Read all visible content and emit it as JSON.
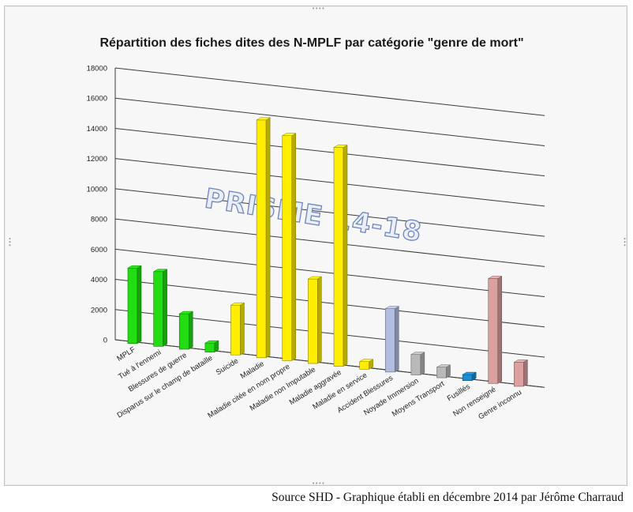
{
  "caption": "Source SHD - Graphique établi en décembre 2014 par Jérôme Charraud",
  "watermark": "PRISME 14-18",
  "chart_data": {
    "type": "bar",
    "title": "Répartition des fiches dites des N-MPLF par catégorie \"genre de mort\"",
    "xlabel": "",
    "ylabel": "",
    "ylim": [
      0,
      18000
    ],
    "yticks": [
      0,
      2000,
      4000,
      6000,
      8000,
      10000,
      12000,
      14000,
      16000,
      18000
    ],
    "grid": true,
    "legend": "none",
    "three_d": true,
    "categories": [
      "MPLF",
      "Tué à l'ennemi",
      "Blessures de guerre",
      "Disparus sur le champ de bataille",
      "Suicide",
      "Maladie",
      "Maladie citée en nom propre",
      "Maladie non Imputable",
      "Maladie aggravée",
      "Maladie en service",
      "Accident Blessures",
      "Noyade Immersion",
      "Moyens Transport",
      "Fusillés",
      "Non renseigné",
      "Genre inconnu"
    ],
    "values": [
      5000,
      4950,
      2350,
      600,
      3300,
      15750,
      14900,
      5600,
      14500,
      500,
      4200,
      1350,
      700,
      400,
      6950,
      1600
    ],
    "colors": [
      "#22dd11",
      "#22dd11",
      "#22dd11",
      "#22dd11",
      "#ffee00",
      "#ffee00",
      "#ffee00",
      "#ffee00",
      "#ffee00",
      "#ffee00",
      "#b3bde0",
      "#b9b9b9",
      "#b9b9b9",
      "#1a8fd6",
      "#dca0a0",
      "#dca0a0"
    ]
  }
}
